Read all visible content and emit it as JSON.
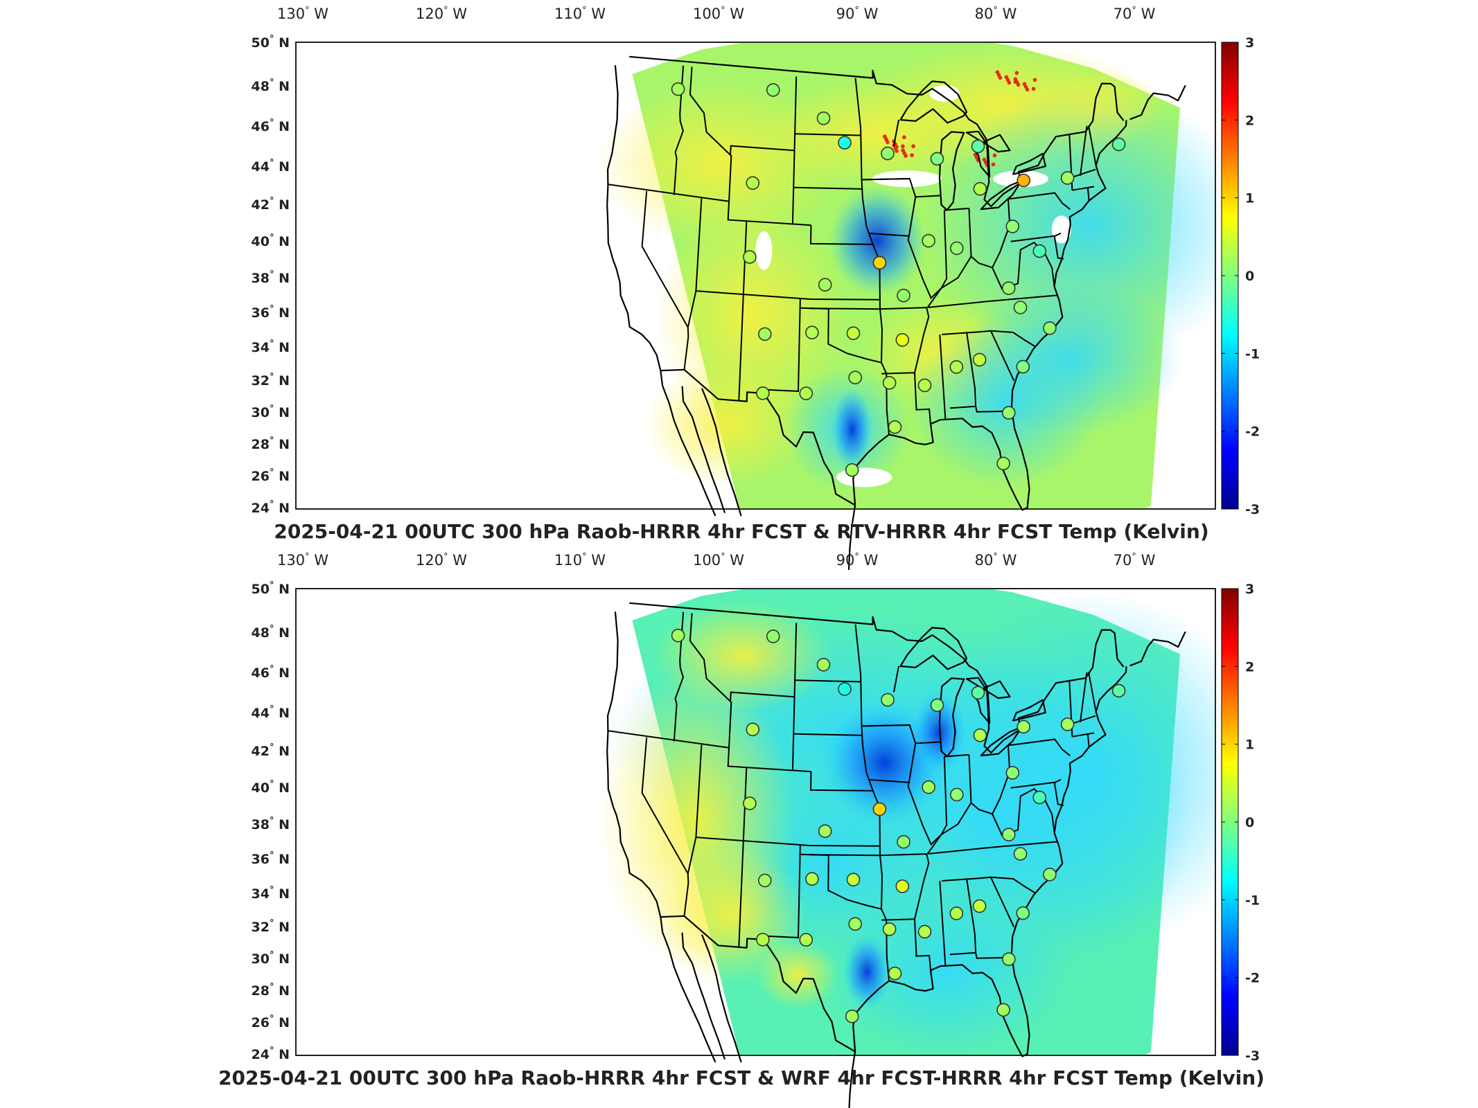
{
  "colorscale": {
    "min": -3,
    "max": 3,
    "stops": [
      "#00008f",
      "#0000ff",
      "#0080ff",
      "#00ffff",
      "#80ff80",
      "#ffff00",
      "#ff8000",
      "#ff0000",
      "#800000"
    ],
    "ticks": [
      "3",
      "2",
      "1",
      "0",
      "-1",
      "-2",
      "-3"
    ]
  },
  "lon_labels": [
    "130",
    "120",
    "110",
    "100",
    "90",
    "80",
    "70"
  ],
  "lon_suffix": "W",
  "lat_labels": [
    "50",
    "48",
    "46",
    "44",
    "42",
    "40",
    "38",
    "36",
    "34",
    "32",
    "30",
    "28",
    "26",
    "24"
  ],
  "lat_suffix": "N",
  "deg": "°",
  "panels": [
    {
      "title": "2025-04-21 00UTC 300 hPa Raob-HRRR 4hr FCST & RTV-HRRR 4hr FCST Temp (Kelvin)",
      "field_base": "#a8f56a",
      "stations": [
        {
          "lon": -117.4,
          "lat": 47.7,
          "value": 0.2
        },
        {
          "lon": -106.6,
          "lat": 48.2,
          "value": 0.1
        },
        {
          "lon": -100.8,
          "lat": 46.8,
          "value": 0.2
        },
        {
          "lon": -98.4,
          "lat": 45.5,
          "value": -0.6
        },
        {
          "lon": -93.6,
          "lat": 44.9,
          "value": 0.1
        },
        {
          "lon": -108.5,
          "lat": 43.1,
          "value": 0.3
        },
        {
          "lon": -88.1,
          "lat": 44.5,
          "value": 0.0
        },
        {
          "lon": -83.5,
          "lat": 45.0,
          "value": -0.2
        },
        {
          "lon": -83.5,
          "lat": 42.7,
          "value": 0.3
        },
        {
          "lon": -78.7,
          "lat": 42.9,
          "value": 1.2
        },
        {
          "lon": -73.9,
          "lat": 42.7,
          "value": 0.2
        },
        {
          "lon": -68.0,
          "lat": 44.0,
          "value": -0.2
        },
        {
          "lon": -89.3,
          "lat": 40.1,
          "value": 0.2
        },
        {
          "lon": -86.3,
          "lat": 39.6,
          "value": 0.1
        },
        {
          "lon": -80.2,
          "lat": 40.5,
          "value": 0.1
        },
        {
          "lon": -77.5,
          "lat": 39.0,
          "value": -0.3
        },
        {
          "lon": -94.6,
          "lat": 39.0,
          "value": 1.0
        },
        {
          "lon": -100.4,
          "lat": 37.8,
          "value": 0.2
        },
        {
          "lon": -108.5,
          "lat": 39.1,
          "value": 0.3
        },
        {
          "lon": -92.1,
          "lat": 37.2,
          "value": 0.1
        },
        {
          "lon": -81.0,
          "lat": 37.2,
          "value": 0.1
        },
        {
          "lon": -79.9,
          "lat": 36.1,
          "value": 0.1
        },
        {
          "lon": -106.6,
          "lat": 35.0,
          "value": 0.2
        },
        {
          "lon": -101.7,
          "lat": 35.2,
          "value": 0.3
        },
        {
          "lon": -97.4,
          "lat": 35.2,
          "value": 0.4
        },
        {
          "lon": -92.3,
          "lat": 34.8,
          "value": 0.6
        },
        {
          "lon": -77.0,
          "lat": 34.8,
          "value": 0.1
        },
        {
          "lon": -97.2,
          "lat": 32.8,
          "value": 0.2
        },
        {
          "lon": -93.7,
          "lat": 32.5,
          "value": 0.3
        },
        {
          "lon": -90.1,
          "lat": 32.3,
          "value": 0.3
        },
        {
          "lon": -86.8,
          "lat": 33.2,
          "value": 0.3
        },
        {
          "lon": -84.4,
          "lat": 33.5,
          "value": 0.4
        },
        {
          "lon": -80.0,
          "lat": 32.9,
          "value": 0.0
        },
        {
          "lon": -102.2,
          "lat": 31.9,
          "value": 0.3
        },
        {
          "lon": -106.6,
          "lat": 31.8,
          "value": 0.3
        },
        {
          "lon": -93.2,
          "lat": 30.1,
          "value": 0.3
        },
        {
          "lon": -81.7,
          "lat": 30.5,
          "value": 0.1
        },
        {
          "lon": -97.5,
          "lat": 27.8,
          "value": 0.2
        },
        {
          "lon": -82.5,
          "lat": 27.8,
          "value": 0.2
        }
      ]
    },
    {
      "title": "2025-04-21 00UTC 300 hPa Raob-HRRR 4hr FCST & WRF 4hr FCST-HRRR 4hr FCST Temp (Kelvin)",
      "field_base": "#58f0b4",
      "stations": [
        {
          "lon": -117.4,
          "lat": 47.7,
          "value": 0.2
        },
        {
          "lon": -106.6,
          "lat": 48.2,
          "value": 0.1
        },
        {
          "lon": -100.8,
          "lat": 46.8,
          "value": 0.2
        },
        {
          "lon": -98.4,
          "lat": 45.5,
          "value": -0.6
        },
        {
          "lon": -93.6,
          "lat": 44.9,
          "value": 0.1
        },
        {
          "lon": -108.5,
          "lat": 43.1,
          "value": 0.3
        },
        {
          "lon": -88.1,
          "lat": 44.5,
          "value": 0.0
        },
        {
          "lon": -83.5,
          "lat": 45.0,
          "value": -0.2
        },
        {
          "lon": -83.5,
          "lat": 42.7,
          "value": 0.3
        },
        {
          "lon": -78.7,
          "lat": 42.9,
          "value": 0.2
        },
        {
          "lon": -73.9,
          "lat": 42.7,
          "value": 0.2
        },
        {
          "lon": -68.0,
          "lat": 44.0,
          "value": -0.2
        },
        {
          "lon": -89.3,
          "lat": 40.1,
          "value": 0.2
        },
        {
          "lon": -86.3,
          "lat": 39.6,
          "value": 0.1
        },
        {
          "lon": -80.2,
          "lat": 40.5,
          "value": 0.1
        },
        {
          "lon": -77.5,
          "lat": 39.0,
          "value": -0.3
        },
        {
          "lon": -94.6,
          "lat": 39.0,
          "value": 1.0
        },
        {
          "lon": -100.4,
          "lat": 37.8,
          "value": 0.2
        },
        {
          "lon": -108.5,
          "lat": 39.1,
          "value": 0.3
        },
        {
          "lon": -92.1,
          "lat": 37.2,
          "value": 0.1
        },
        {
          "lon": -81.0,
          "lat": 37.2,
          "value": 0.1
        },
        {
          "lon": -79.9,
          "lat": 36.1,
          "value": 0.1
        },
        {
          "lon": -106.6,
          "lat": 35.0,
          "value": 0.2
        },
        {
          "lon": -101.7,
          "lat": 35.2,
          "value": 0.3
        },
        {
          "lon": -97.4,
          "lat": 35.2,
          "value": 0.4
        },
        {
          "lon": -92.3,
          "lat": 34.8,
          "value": 0.6
        },
        {
          "lon": -77.0,
          "lat": 34.8,
          "value": 0.1
        },
        {
          "lon": -97.2,
          "lat": 32.8,
          "value": 0.2
        },
        {
          "lon": -93.7,
          "lat": 32.5,
          "value": 0.3
        },
        {
          "lon": -90.1,
          "lat": 32.3,
          "value": 0.3
        },
        {
          "lon": -86.8,
          "lat": 33.2,
          "value": 0.3
        },
        {
          "lon": -84.4,
          "lat": 33.5,
          "value": 0.4
        },
        {
          "lon": -80.0,
          "lat": 32.9,
          "value": 0.0
        },
        {
          "lon": -102.2,
          "lat": 31.9,
          "value": 0.3
        },
        {
          "lon": -106.6,
          "lat": 31.8,
          "value": 0.3
        },
        {
          "lon": -93.2,
          "lat": 30.1,
          "value": 0.3
        },
        {
          "lon": -81.7,
          "lat": 30.5,
          "value": 0.1
        },
        {
          "lon": -97.5,
          "lat": 27.8,
          "value": 0.2
        },
        {
          "lon": -82.5,
          "lat": 27.8,
          "value": 0.2
        }
      ]
    }
  ]
}
